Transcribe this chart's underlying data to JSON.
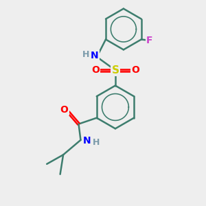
{
  "bg_color": "#eeeeee",
  "bond_color": "#3d7d6e",
  "bond_width": 1.8,
  "atom_colors": {
    "N": "#0000ff",
    "O": "#ff0000",
    "S": "#cccc00",
    "F": "#cc44cc",
    "H": "#7a9aaa",
    "C": "#3d7d6e"
  },
  "font_size": 10
}
